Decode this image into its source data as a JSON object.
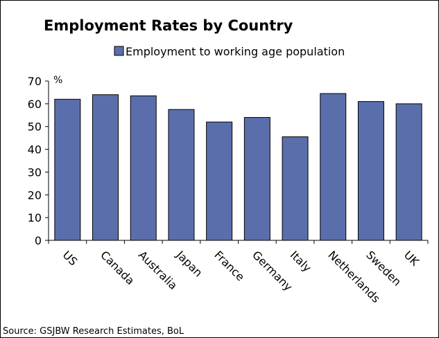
{
  "chart_data": {
    "type": "bar",
    "title": "Employment Rates by Country",
    "categories": [
      "US",
      "Canada",
      "Australia",
      "Japan",
      "France",
      "Germany",
      "Italy",
      "Netherlands",
      "Sweden",
      "UK"
    ],
    "series": [
      {
        "name": "Employment to working age population",
        "values": [
          62,
          64,
          63.5,
          57.5,
          52,
          54,
          45.5,
          64.5,
          61,
          60
        ]
      }
    ],
    "ylabel": "%",
    "ylim": [
      0,
      70
    ],
    "yticks": [
      "0",
      "10",
      "20",
      "30",
      "40",
      "50",
      "60",
      "70"
    ],
    "legend_position": "top-center",
    "grid": false,
    "source": "Source: GSJBW Research Estimates, BoL",
    "colors": {
      "bar_fill": "#5b6eac",
      "bar_stroke": "#000000",
      "axis": "#000000"
    }
  }
}
